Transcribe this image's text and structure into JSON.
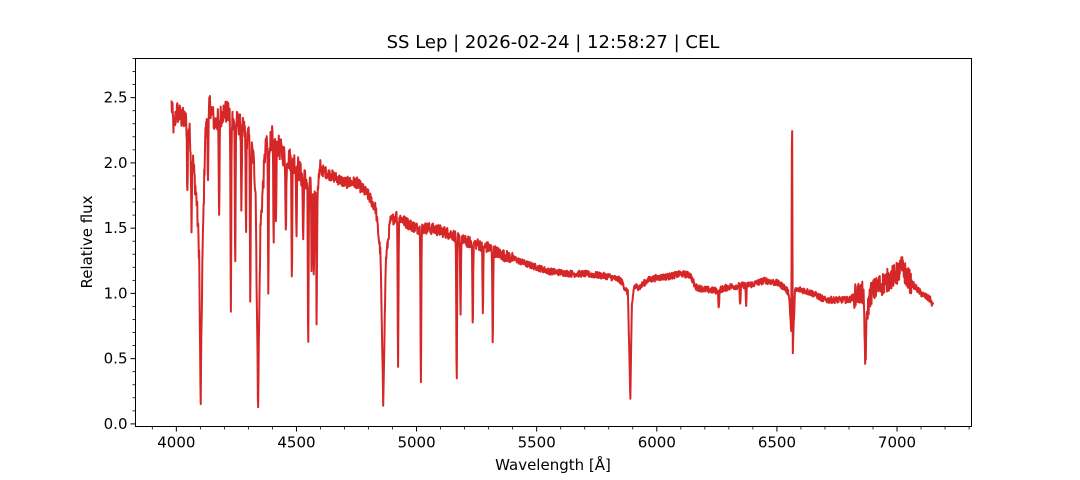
{
  "chart_data": {
    "type": "line",
    "title": "SS Lep | 2026-02-24 | 12:58:27 | CEL",
    "xlabel": "Wavelength [Å]",
    "ylabel": "Relative flux",
    "xlim": [
      3830,
      7310
    ],
    "ylim": [
      -0.02,
      2.8
    ],
    "xticks": [
      4000,
      4500,
      5000,
      5500,
      6000,
      6500,
      7000
    ],
    "xtick_labels": [
      "4000",
      "4500",
      "5000",
      "5500",
      "6000",
      "6500",
      "7000"
    ],
    "xminor_step": 100,
    "yticks": [
      0.0,
      0.5,
      1.0,
      1.5,
      2.0,
      2.5
    ],
    "ytick_labels": [
      "0.0",
      "0.5",
      "1.0",
      "1.5",
      "2.0",
      "2.5"
    ],
    "yminor_step": 0.1,
    "grid": false,
    "line_color": "#d62728",
    "series": [
      {
        "x": [
          3980,
          3990,
          4000,
          4020,
          4050,
          4070,
          4085,
          4095,
          4101,
          4108,
          4120,
          4140,
          4160,
          4200,
          4230,
          4260,
          4300,
          4320,
          4330,
          4340,
          4350,
          4370,
          4400,
          4450,
          4500,
          4520,
          4550,
          4580,
          4600,
          4650,
          4700,
          4750,
          4800,
          4830,
          4850,
          4861,
          4872,
          4890,
          4920,
          4950,
          5000,
          5050,
          5100,
          5150,
          5200,
          5250,
          5300,
          5350,
          5400,
          5450,
          5500,
          5550,
          5600,
          5650,
          5700,
          5750,
          5800,
          5850,
          5880,
          5890,
          5896,
          5905,
          5930,
          5960,
          6000,
          6050,
          6100,
          6140,
          6160,
          6200,
          6250,
          6300,
          6350,
          6400,
          6450,
          6500,
          6530,
          6550,
          6560,
          6563,
          6566,
          6575,
          6600,
          6650,
          6700,
          6750,
          6800,
          6840,
          6860,
          6868,
          6875,
          6890,
          6920,
          6960,
          7000,
          7020,
          7050,
          7100,
          7140,
          7150
        ],
        "y": [
          2.45,
          2.25,
          2.4,
          2.35,
          2.3,
          2.0,
          1.7,
          1.3,
          0.11,
          1.2,
          2.2,
          2.45,
          2.3,
          2.4,
          2.35,
          2.3,
          2.2,
          2.05,
          1.8,
          0.13,
          1.5,
          2.1,
          2.2,
          2.05,
          2.0,
          1.9,
          1.85,
          1.75,
          1.95,
          1.9,
          1.85,
          1.85,
          1.75,
          1.65,
          1.3,
          0.15,
          1.25,
          1.55,
          1.6,
          1.55,
          1.5,
          1.5,
          1.48,
          1.45,
          1.4,
          1.38,
          1.35,
          1.3,
          1.27,
          1.23,
          1.2,
          1.17,
          1.16,
          1.15,
          1.15,
          1.14,
          1.13,
          1.1,
          1.0,
          0.17,
          0.9,
          1.05,
          1.05,
          1.1,
          1.12,
          1.13,
          1.15,
          1.14,
          1.05,
          1.03,
          1.02,
          1.05,
          1.06,
          1.07,
          1.1,
          1.08,
          1.05,
          1.0,
          0.7,
          2.6,
          0.55,
          1.02,
          1.03,
          1.0,
          0.95,
          0.95,
          0.95,
          1.0,
          1.0,
          0.45,
          0.85,
          1.0,
          1.05,
          1.1,
          1.15,
          1.2,
          1.1,
          1.0,
          0.95,
          0.9
        ]
      }
    ],
    "absorption_lines": [
      {
        "x": 4046,
        "depth": 0.55
      },
      {
        "x": 4063,
        "depth": 0.55
      },
      {
        "x": 4132,
        "depth": 0.45
      },
      {
        "x": 4178,
        "depth": 0.8
      },
      {
        "x": 4227,
        "depth": 1.5
      },
      {
        "x": 4245,
        "depth": 1.1
      },
      {
        "x": 4271,
        "depth": 0.6
      },
      {
        "x": 4290,
        "depth": 0.7
      },
      {
        "x": 4308,
        "depth": 1.2
      },
      {
        "x": 4383,
        "depth": 1.15
      },
      {
        "x": 4405,
        "depth": 0.85
      },
      {
        "x": 4415,
        "depth": 0.6
      },
      {
        "x": 4456,
        "depth": 0.6
      },
      {
        "x": 4481,
        "depth": 0.85
      },
      {
        "x": 4500,
        "depth": 0.5
      },
      {
        "x": 4528,
        "depth": 0.5
      },
      {
        "x": 4549,
        "depth": 1.3
      },
      {
        "x": 4563,
        "depth": 0.6
      },
      {
        "x": 4572,
        "depth": 0.6
      },
      {
        "x": 4584,
        "depth": 1.0
      },
      {
        "x": 4923,
        "depth": 1.15
      },
      {
        "x": 5018,
        "depth": 1.15
      },
      {
        "x": 5167,
        "depth": 1.15
      },
      {
        "x": 5183,
        "depth": 0.55
      },
      {
        "x": 5234,
        "depth": 0.6
      },
      {
        "x": 5276,
        "depth": 0.5
      },
      {
        "x": 5317,
        "depth": 0.7
      },
      {
        "x": 6258,
        "depth": 0.15
      },
      {
        "x": 6347,
        "depth": 0.15
      },
      {
        "x": 6372,
        "depth": 0.15
      }
    ]
  }
}
